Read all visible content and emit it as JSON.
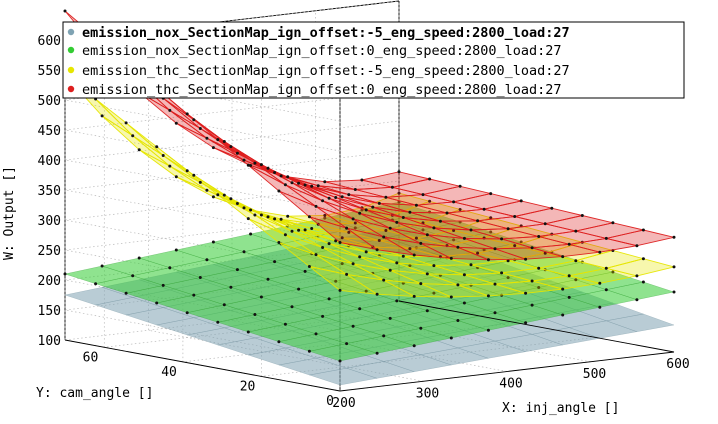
{
  "chart_data": {
    "type": "surface",
    "title": "",
    "xlabel": "X: inj_angle []",
    "ylabel": "Y: cam_angle []",
    "zlabel": "W: Output []",
    "x_ticks": [
      200,
      300,
      400,
      500,
      600
    ],
    "y_ticks": [
      0,
      20,
      40,
      60
    ],
    "z_ticks": [
      100,
      150,
      200,
      250,
      300,
      350,
      400,
      450,
      500,
      550,
      600
    ],
    "xlim": [
      200,
      600
    ],
    "ylim": [
      0,
      70
    ],
    "zlim": [
      100,
      600
    ],
    "grid": true,
    "legend_position": "top",
    "series": [
      {
        "name": "emission_nox_SectionMap_ign_offset:-5_eng_speed:2800_load:27",
        "color": "#7fa3b3",
        "highlighted": true,
        "corner_values": {
          "x200_y0": 110,
          "x600_y0": 145,
          "x200_y70": 175,
          "x600_y70": 225
        }
      },
      {
        "name": "emission_nox_SectionMap_ign_offset:0_eng_speed:2800_load:27",
        "color": "#33cc33",
        "highlighted": false,
        "corner_values": {
          "x200_y0": 150,
          "x600_y0": 200,
          "x200_y70": 210,
          "x600_y70": 265
        }
      },
      {
        "name": "emission_thc_SectionMap_ign_offset:-5_eng_speed:2800_load:27",
        "color": "#e6e600",
        "highlighted": false,
        "corner_values": {
          "x200_y0": 255,
          "x600_y0": 240,
          "x200_y70": 420,
          "x600_y70": 205
        }
      },
      {
        "name": "emission_thc_SectionMap_ign_offset:0_eng_speed:2800_load:27",
        "color": "#dd1f1f",
        "highlighted": false,
        "corner_values": {
          "x200_y0": 330,
          "x600_y0": 300,
          "x200_y70": 520,
          "x600_y70": 275
        }
      }
    ]
  }
}
